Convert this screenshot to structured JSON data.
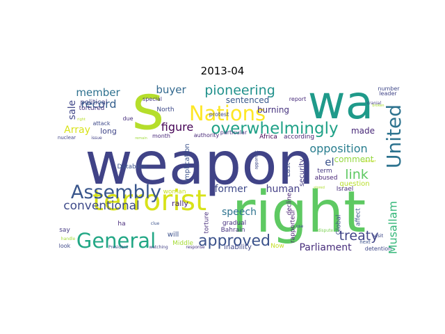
{
  "title": "2013-04",
  "words": [
    {
      "text": "weapon",
      "color": "#404387"
    },
    {
      "text": "right",
      "color": "#5ec962"
    },
    {
      "text": "wa",
      "color": "#1f9a8a"
    },
    {
      "text": "s",
      "color": "#b5de2b"
    },
    {
      "text": "terrorist",
      "color": "#d8e219"
    },
    {
      "text": "Nations",
      "color": "#fde725"
    },
    {
      "text": "General",
      "color": "#22a785"
    },
    {
      "text": "Assembly",
      "color": "#39568c"
    },
    {
      "text": "United",
      "color": "#2c728e"
    },
    {
      "text": "overwhelmingly",
      "color": "#1fa187"
    },
    {
      "text": "approved",
      "color": "#3b528b"
    },
    {
      "text": "treaty",
      "color": "#414487"
    },
    {
      "text": "pioneering",
      "color": "#21918c"
    },
    {
      "text": "conventional",
      "color": "#3e4a89"
    },
    {
      "text": "opposition",
      "color": "#287d8e"
    },
    {
      "text": "Musallam",
      "color": "#35b779"
    },
    {
      "text": "link",
      "color": "#5ec962"
    },
    {
      "text": "figure",
      "color": "#440154"
    },
    {
      "text": "former",
      "color": "#3e4989"
    },
    {
      "text": "human",
      "color": "#433e85"
    },
    {
      "text": "record",
      "color": "#355f8d"
    },
    {
      "text": "member",
      "color": "#2d708e"
    },
    {
      "text": "buyer",
      "color": "#31688e"
    },
    {
      "text": "speech",
      "color": "#2c728e"
    },
    {
      "text": "Parliament",
      "color": "#472d7b"
    },
    {
      "text": "Array",
      "color": "#d8e219"
    },
    {
      "text": "sale",
      "color": "#404688"
    },
    {
      "text": "el",
      "color": "#3b528b"
    },
    {
      "text": "sentenced",
      "color": "#38598c"
    },
    {
      "text": "comment",
      "color": "#95d840"
    },
    {
      "text": "made",
      "color": "#482878"
    },
    {
      "text": "burning",
      "color": "#46327e"
    },
    {
      "text": "political",
      "color": "#424186"
    },
    {
      "text": "rally",
      "color": "#482475"
    },
    {
      "text": "long",
      "color": "#404688"
    },
    {
      "text": "tortured",
      "color": "#46337f"
    },
    {
      "text": "implication",
      "color": "#3b528b"
    },
    {
      "text": "question",
      "color": "#b8de29"
    },
    {
      "text": "Bahrain",
      "color": "#463480"
    },
    {
      "text": "security",
      "color": "#443a83"
    },
    {
      "text": "rapporteur",
      "color": "#481d6f"
    },
    {
      "text": "Last",
      "color": "#3e4c8a"
    },
    {
      "text": "term",
      "color": "#453781"
    },
    {
      "text": "torture",
      "color": "#472d7b"
    },
    {
      "text": "gradual",
      "color": "#46307e"
    },
    {
      "text": "inability",
      "color": "#3f4788"
    },
    {
      "text": "decline",
      "color": "#482173"
    },
    {
      "text": "affect",
      "color": "#39568c"
    },
    {
      "text": "Global",
      "color": "#3e4a89"
    },
    {
      "text": "abused",
      "color": "#482677"
    },
    {
      "text": "Israel",
      "color": "#472c7a"
    },
    {
      "text": "Africa",
      "color": "#440154"
    },
    {
      "text": "according",
      "color": "#482475"
    },
    {
      "text": "North",
      "color": "#3e4a89"
    },
    {
      "text": "protest",
      "color": "#3f4788"
    },
    {
      "text": "Middle",
      "color": "#a5db36"
    },
    {
      "text": "woman",
      "color": "#c8e020"
    },
    {
      "text": "will",
      "color": "#3c508b"
    },
    {
      "text": "Database",
      "color": "#3b528b"
    },
    {
      "text": "Now",
      "color": "#c2df23"
    },
    {
      "text": "ha",
      "color": "#472a7a"
    },
    {
      "text": "say",
      "color": "#443983"
    },
    {
      "text": "look",
      "color": "#3e4a89"
    },
    {
      "text": "detention",
      "color": "#3f4889"
    },
    {
      "text": "month",
      "color": "#482878"
    },
    {
      "text": "particular",
      "color": "#463480"
    },
    {
      "text": "authority",
      "color": "#482878"
    },
    {
      "text": "special",
      "color": "#453882"
    },
    {
      "text": "due",
      "color": "#472f7d"
    },
    {
      "text": "attack",
      "color": "#3e4989"
    },
    {
      "text": "report",
      "color": "#472a7a"
    },
    {
      "text": "leader",
      "color": "#414487"
    },
    {
      "text": "number",
      "color": "#3f4889"
    },
    {
      "text": "visit",
      "color": "#3e4989"
    },
    {
      "text": "next",
      "color": "#3b528b"
    },
    {
      "text": "response",
      "color": "#453581"
    },
    {
      "text": "watching",
      "color": "#424186"
    },
    {
      "text": "President",
      "color": "#3c4f8a"
    },
    {
      "text": "nuclear",
      "color": "#414487"
    },
    {
      "text": "issue",
      "color": "#424186"
    },
    {
      "text": "handle",
      "color": "#a2da37"
    },
    {
      "text": "clue",
      "color": "#3b528b"
    },
    {
      "text": "apparent",
      "color": "#3e4a89"
    },
    {
      "text": "use",
      "color": "#3f4889"
    },
    {
      "text": "cranial",
      "color": "#443b84"
    },
    {
      "text": "right",
      "color": "#b5de2b"
    },
    {
      "text": "dispute",
      "color": "#7ad151"
    },
    {
      "text": "counter",
      "color": "#c2df23"
    },
    {
      "text": "remain",
      "color": "#9fda3a"
    },
    {
      "text": "broken",
      "color": "#a8db34"
    },
    {
      "text": "stored",
      "color": "#b0dd2f"
    }
  ]
}
